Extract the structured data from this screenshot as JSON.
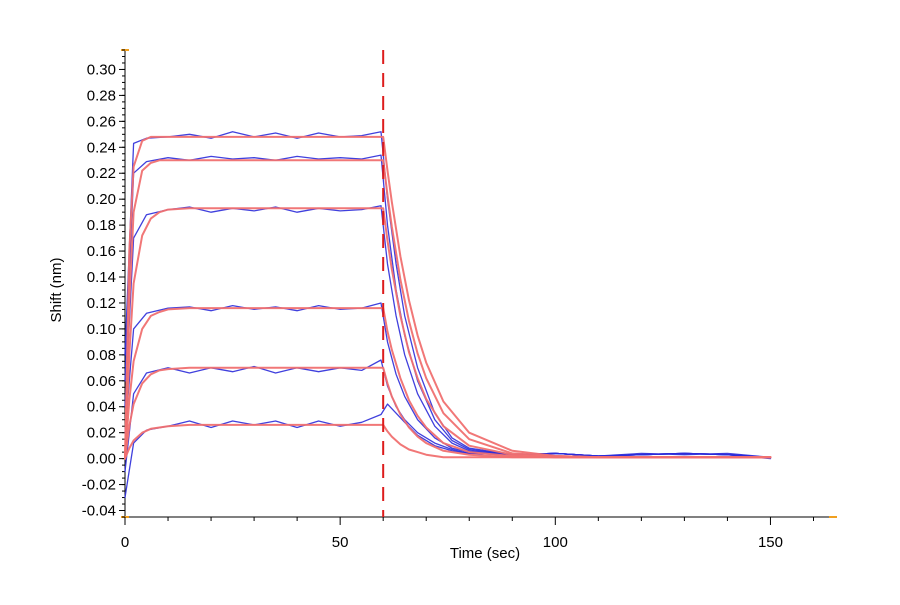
{
  "chart_data": {
    "type": "line",
    "title": "",
    "xlabel": "Time (sec)",
    "ylabel": "Shift (nm)",
    "xlim": [
      0,
      165
    ],
    "ylim": [
      -0.045,
      0.315
    ],
    "x_ticks": [
      0,
      50,
      100,
      150
    ],
    "x_tick_labels": [
      "0",
      "50",
      "100",
      "150"
    ],
    "y_ticks": [
      -0.04,
      -0.02,
      0.0,
      0.02,
      0.04,
      0.06,
      0.08,
      0.1,
      0.12,
      0.14,
      0.16,
      0.18,
      0.2,
      0.22,
      0.24,
      0.26,
      0.28,
      0.3
    ],
    "y_tick_labels": [
      "-0.04",
      "-0.02",
      "0.00",
      "0.02",
      "0.04",
      "0.06",
      "0.08",
      "0.10",
      "0.12",
      "0.14",
      "0.16",
      "0.18",
      "0.20",
      "0.22",
      "0.24",
      "0.26",
      "0.28",
      "0.30"
    ],
    "association_end_marker": {
      "x": 60,
      "color": "#dd1c1c",
      "style": "dashed"
    },
    "grid": false,
    "legend": "none",
    "colors": {
      "raw": "#2b2bd9",
      "fit": "#f07070",
      "axis_accent": "#f0a020"
    },
    "series": [
      {
        "kind": "raw",
        "x": [
          0,
          2,
          5,
          10,
          15,
          20,
          25,
          30,
          35,
          40,
          45,
          50,
          55,
          59.5,
          61,
          63,
          65,
          68,
          72,
          76,
          80,
          90,
          100,
          110,
          120,
          130,
          140,
          150
        ],
        "y": [
          -0.03,
          0.012,
          0.022,
          0.025,
          0.029,
          0.024,
          0.029,
          0.026,
          0.029,
          0.024,
          0.029,
          0.025,
          0.028,
          0.034,
          0.042,
          0.035,
          0.028,
          0.018,
          0.01,
          0.006,
          0.004,
          0.003,
          0.004,
          0.002,
          0.004,
          0.003,
          0.004,
          0.001
        ]
      },
      {
        "kind": "raw",
        "x": [
          0,
          2,
          5,
          10,
          15,
          20,
          25,
          30,
          35,
          40,
          45,
          50,
          55,
          59.5,
          61,
          63,
          65,
          68,
          72,
          76,
          80,
          90,
          100,
          110,
          120,
          130,
          140,
          150
        ],
        "y": [
          -0.01,
          0.05,
          0.066,
          0.07,
          0.066,
          0.07,
          0.067,
          0.071,
          0.066,
          0.07,
          0.067,
          0.07,
          0.068,
          0.076,
          0.056,
          0.04,
          0.03,
          0.02,
          0.012,
          0.007,
          0.004,
          0.003,
          0.004,
          0.002,
          0.003,
          0.004,
          0.003,
          0.0
        ]
      },
      {
        "kind": "raw",
        "x": [
          0,
          2,
          5,
          10,
          15,
          20,
          25,
          30,
          35,
          40,
          45,
          50,
          55,
          59.5,
          61,
          63,
          65,
          68,
          72,
          76,
          80,
          90,
          100,
          110,
          120,
          130,
          140,
          150
        ],
        "y": [
          0.02,
          0.1,
          0.112,
          0.116,
          0.117,
          0.114,
          0.118,
          0.115,
          0.117,
          0.114,
          0.118,
          0.115,
          0.116,
          0.12,
          0.09,
          0.065,
          0.048,
          0.03,
          0.016,
          0.008,
          0.005,
          0.003,
          0.004,
          0.002,
          0.003,
          0.004,
          0.003,
          0.001
        ]
      },
      {
        "kind": "raw",
        "x": [
          0,
          2,
          5,
          10,
          15,
          20,
          25,
          30,
          35,
          40,
          45,
          50,
          55,
          59.5,
          61,
          63,
          65,
          68,
          72,
          76,
          80,
          90,
          100,
          110,
          120,
          130,
          140,
          150
        ],
        "y": [
          0.04,
          0.17,
          0.188,
          0.192,
          0.194,
          0.19,
          0.193,
          0.191,
          0.194,
          0.19,
          0.193,
          0.191,
          0.192,
          0.195,
          0.15,
          0.11,
          0.08,
          0.05,
          0.025,
          0.012,
          0.006,
          0.003,
          0.004,
          0.002,
          0.003,
          0.004,
          0.003,
          0.001
        ]
      },
      {
        "kind": "raw",
        "x": [
          0,
          2,
          5,
          10,
          15,
          20,
          25,
          30,
          35,
          40,
          45,
          50,
          55,
          59.5,
          61,
          63,
          65,
          68,
          72,
          76,
          80,
          90,
          100,
          110,
          120,
          130,
          140,
          150
        ],
        "y": [
          0.06,
          0.22,
          0.229,
          0.232,
          0.23,
          0.233,
          0.231,
          0.232,
          0.23,
          0.233,
          0.231,
          0.232,
          0.231,
          0.234,
          0.18,
          0.13,
          0.095,
          0.06,
          0.03,
          0.014,
          0.007,
          0.003,
          0.004,
          0.002,
          0.003,
          0.004,
          0.003,
          0.001
        ]
      },
      {
        "kind": "raw",
        "x": [
          0,
          2,
          5,
          10,
          15,
          20,
          25,
          30,
          35,
          40,
          45,
          50,
          55,
          59.5,
          61,
          63,
          65,
          68,
          72,
          76,
          80,
          90,
          100,
          110,
          120,
          130,
          140,
          150
        ],
        "y": [
          0.08,
          0.243,
          0.247,
          0.248,
          0.25,
          0.247,
          0.252,
          0.248,
          0.251,
          0.247,
          0.251,
          0.248,
          0.249,
          0.252,
          0.2,
          0.15,
          0.11,
          0.07,
          0.035,
          0.016,
          0.008,
          0.003,
          0.004,
          0.002,
          0.003,
          0.004,
          0.003,
          0.001
        ]
      },
      {
        "kind": "fit",
        "x": [
          0,
          1,
          2,
          4,
          6,
          8,
          10,
          15,
          20,
          30,
          40,
          50,
          60,
          61,
          62,
          64,
          66,
          68,
          70,
          74,
          80,
          90,
          100,
          110,
          120,
          130,
          140,
          150
        ],
        "y": [
          0,
          0.008,
          0.014,
          0.02,
          0.023,
          0.024,
          0.025,
          0.026,
          0.026,
          0.026,
          0.026,
          0.026,
          0.026,
          0.021,
          0.017,
          0.011,
          0.007,
          0.005,
          0.003,
          0.001,
          0.001,
          0.001,
          0.001,
          0.001,
          0.001,
          0.001,
          0.001,
          0.001
        ]
      },
      {
        "kind": "fit",
        "x": [
          0,
          1,
          2,
          4,
          6,
          8,
          10,
          15,
          20,
          30,
          40,
          50,
          60,
          61,
          62,
          64,
          66,
          68,
          70,
          74,
          80,
          90,
          100,
          110,
          120,
          130,
          140,
          150
        ],
        "y": [
          0,
          0.025,
          0.042,
          0.058,
          0.065,
          0.068,
          0.069,
          0.07,
          0.07,
          0.07,
          0.07,
          0.07,
          0.07,
          0.058,
          0.048,
          0.034,
          0.024,
          0.017,
          0.012,
          0.006,
          0.003,
          0.001,
          0.001,
          0.001,
          0.001,
          0.001,
          0.001,
          0.001
        ]
      },
      {
        "kind": "fit",
        "x": [
          0,
          1,
          2,
          4,
          6,
          8,
          10,
          15,
          20,
          30,
          40,
          50,
          60,
          61,
          62,
          64,
          66,
          68,
          70,
          74,
          80,
          90,
          100,
          110,
          120,
          130,
          140,
          150
        ],
        "y": [
          0,
          0.045,
          0.075,
          0.1,
          0.11,
          0.113,
          0.115,
          0.116,
          0.116,
          0.116,
          0.116,
          0.116,
          0.116,
          0.098,
          0.084,
          0.062,
          0.045,
          0.033,
          0.024,
          0.012,
          0.005,
          0.002,
          0.001,
          0.001,
          0.001,
          0.001,
          0.001,
          0.001
        ]
      },
      {
        "kind": "fit",
        "x": [
          0,
          1,
          2,
          4,
          6,
          8,
          10,
          15,
          20,
          30,
          40,
          50,
          60,
          61,
          62,
          64,
          66,
          68,
          70,
          74,
          80,
          90,
          100,
          110,
          120,
          130,
          140,
          150
        ],
        "y": [
          0,
          0.08,
          0.135,
          0.172,
          0.185,
          0.19,
          0.192,
          0.193,
          0.193,
          0.193,
          0.193,
          0.193,
          0.193,
          0.168,
          0.146,
          0.11,
          0.082,
          0.062,
          0.046,
          0.025,
          0.01,
          0.003,
          0.001,
          0.001,
          0.001,
          0.001,
          0.001,
          0.001
        ]
      },
      {
        "kind": "fit",
        "x": [
          0,
          1,
          2,
          4,
          6,
          8,
          10,
          15,
          20,
          30,
          40,
          50,
          60,
          61,
          62,
          64,
          66,
          68,
          70,
          74,
          80,
          90,
          100,
          110,
          120,
          130,
          140,
          150
        ],
        "y": [
          0,
          0.12,
          0.19,
          0.222,
          0.228,
          0.23,
          0.23,
          0.23,
          0.23,
          0.23,
          0.23,
          0.23,
          0.23,
          0.203,
          0.179,
          0.138,
          0.106,
          0.081,
          0.062,
          0.035,
          0.015,
          0.004,
          0.002,
          0.001,
          0.001,
          0.001,
          0.001,
          0.001
        ]
      },
      {
        "kind": "fit",
        "x": [
          0,
          1,
          2,
          4,
          6,
          8,
          10,
          15,
          20,
          30,
          40,
          50,
          60,
          61,
          62,
          64,
          66,
          68,
          70,
          74,
          80,
          90,
          100,
          110,
          120,
          130,
          140,
          150
        ],
        "y": [
          0,
          0.16,
          0.225,
          0.245,
          0.248,
          0.248,
          0.248,
          0.248,
          0.248,
          0.248,
          0.248,
          0.248,
          0.248,
          0.222,
          0.198,
          0.156,
          0.122,
          0.095,
          0.074,
          0.044,
          0.02,
          0.006,
          0.002,
          0.001,
          0.001,
          0.001,
          0.001,
          0.001
        ]
      }
    ]
  }
}
